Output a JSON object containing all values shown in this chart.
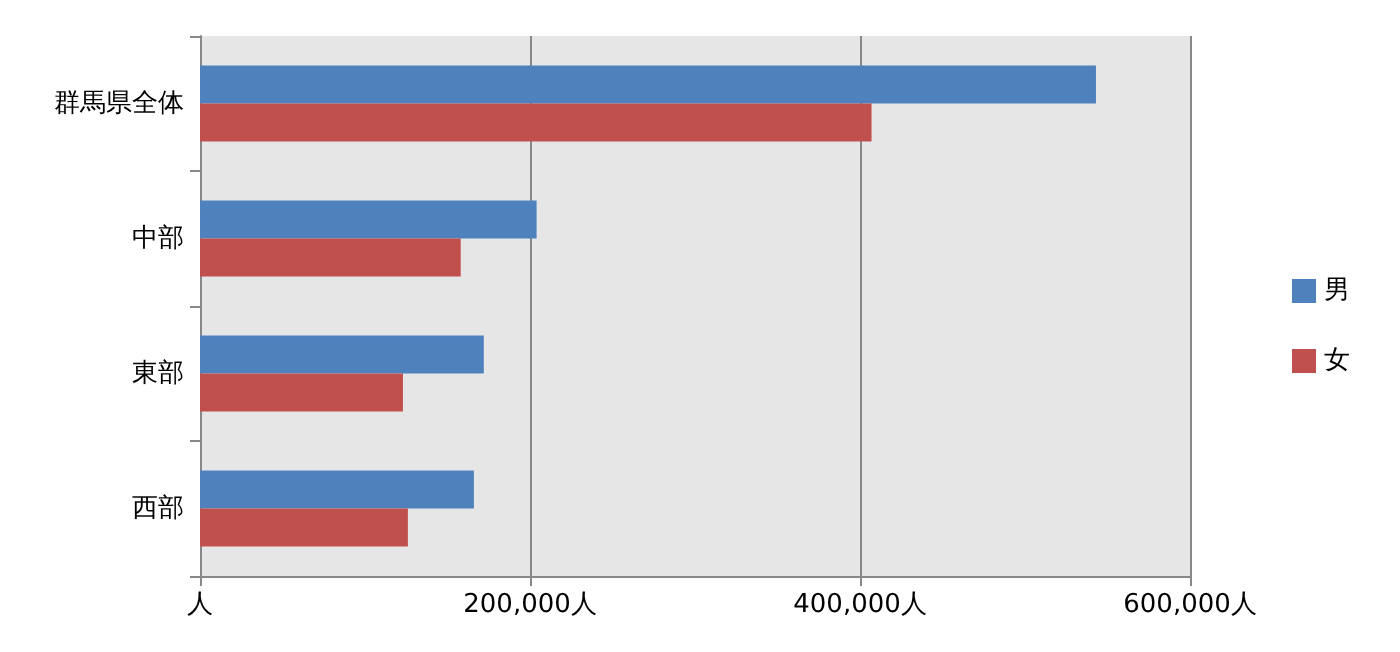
{
  "chart_data": {
    "type": "bar",
    "orientation": "horizontal",
    "categories": [
      "群馬県全体",
      "中部",
      "東部",
      "西部"
    ],
    "series": [
      {
        "name": "男",
        "color": "#4f81bd",
        "values": [
          543000,
          204000,
          172000,
          166000
        ]
      },
      {
        "name": "女",
        "color": "#c0504d",
        "values": [
          407000,
          158000,
          123000,
          126000
        ]
      }
    ],
    "xlim": [
      0,
      600000
    ],
    "xticks": [
      {
        "value": 0,
        "label": "人"
      },
      {
        "value": 200000,
        "label": "200,000人"
      },
      {
        "value": 400000,
        "label": "400,000人"
      },
      {
        "value": 600000,
        "label": "600,000人"
      }
    ],
    "grid": "x",
    "legend": "right"
  }
}
